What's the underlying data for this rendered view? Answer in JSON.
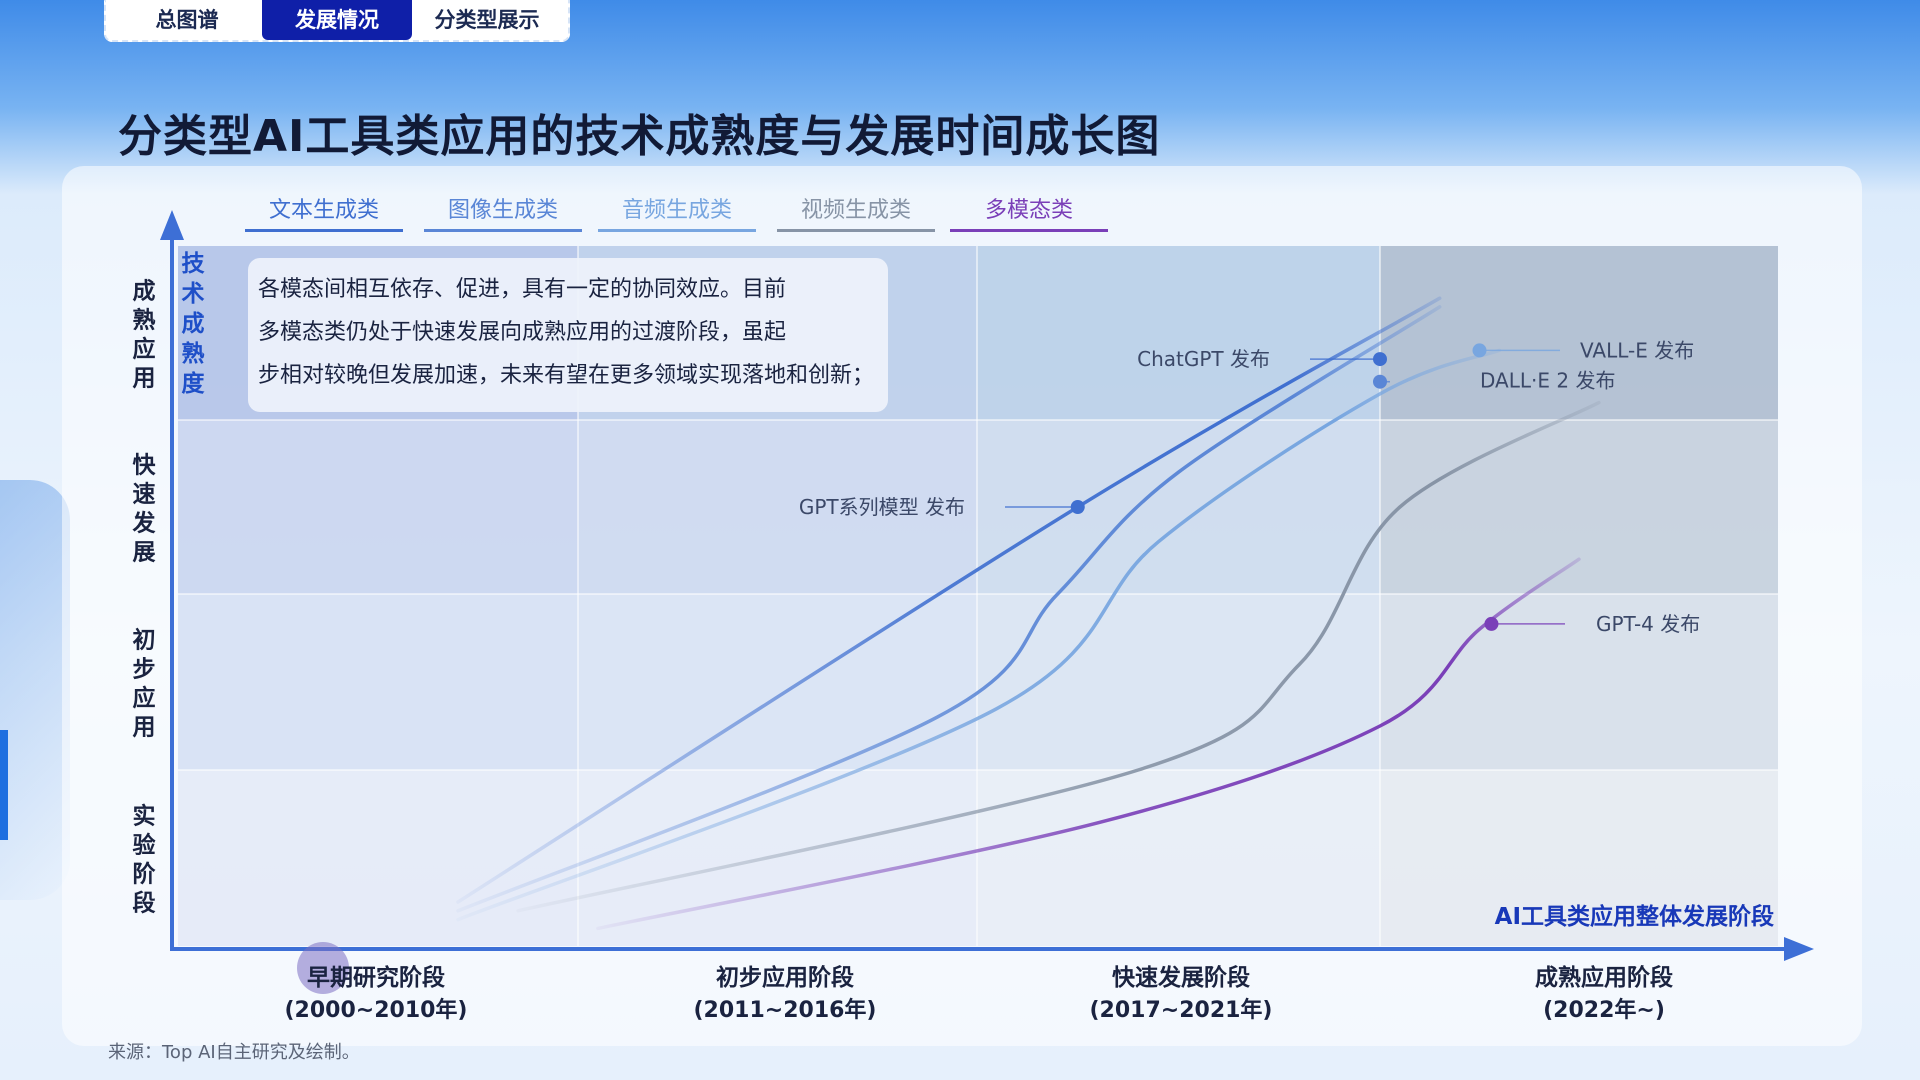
{
  "tabs": [
    {
      "label": "总图谱",
      "active": false
    },
    {
      "label": "发展情况",
      "active": true
    },
    {
      "label": "分类型展示",
      "active": false
    }
  ],
  "title": "分类型AI工具类应用的技术成熟度与发展时间成长图",
  "source": "来源：Top AI自主研究及绘制。",
  "callout": "各模态间相互依存、促进，具有一定的协同效应。目前多模态类仍处于快速发展向成熟应用的过渡阶段，虽起步相对较晚但发展加速，未来有望在更多领域实现落地和创新；",
  "chart_data": {
    "type": "line",
    "ylabel": "技术成熟度",
    "xlabel": "AI工具类应用整体发展阶段",
    "y_levels": [
      "实验阶段",
      "初步应用",
      "快速发展",
      "成熟应用"
    ],
    "x_stages": [
      {
        "name": "早期研究阶段",
        "period": "(2000~2010年)"
      },
      {
        "name": "初步应用阶段",
        "period": "(2011~2016年)"
      },
      {
        "name": "快速发展阶段",
        "period": "(2017~2021年)"
      },
      {
        "name": "成熟应用阶段",
        "period": "(2022年~)"
      }
    ],
    "legend_placement": "top",
    "series": [
      {
        "name": "文本生成类",
        "color": "#3f6fd0",
        "points": [
          [
            0.7,
            0.25
          ],
          [
            2.25,
            2.5
          ],
          [
            3.15,
            3.7
          ]
        ]
      },
      {
        "name": "图像生成类",
        "color": "#5a86d6",
        "points": [
          [
            0.7,
            0.2
          ],
          [
            1.9,
            1.3
          ],
          [
            2.2,
            2.0
          ],
          [
            2.5,
            2.7
          ],
          [
            3.15,
            3.65
          ]
        ]
      },
      {
        "name": "音频生成类",
        "color": "#78a6e0",
        "points": [
          [
            0.7,
            0.15
          ],
          [
            2.05,
            1.35
          ],
          [
            2.45,
            2.3
          ],
          [
            3.0,
            3.15
          ],
          [
            3.3,
            3.4
          ]
        ]
      },
      {
        "name": "视频生成类",
        "color": "#8794a6",
        "points": [
          [
            0.85,
            0.2
          ],
          [
            2.4,
            1.0
          ],
          [
            2.8,
            1.6
          ],
          [
            3.05,
            2.5
          ],
          [
            3.55,
            3.1
          ]
        ]
      },
      {
        "name": "多模态类",
        "color": "#7a3fb8",
        "points": [
          [
            1.05,
            0.1
          ],
          [
            2.3,
            0.7
          ],
          [
            3.0,
            1.25
          ],
          [
            3.25,
            1.8
          ],
          [
            3.5,
            2.2
          ]
        ]
      }
    ],
    "events": [
      {
        "label": "GPT系列模型 发布",
        "x": 2.25,
        "y": 2.5,
        "color": "#3f6fd0"
      },
      {
        "label": "ChatGPT 发布",
        "x": 3.0,
        "y": 3.35,
        "color": "#3f6fd0"
      },
      {
        "label": "DALL·E 2 发布",
        "x": 3.0,
        "y": 3.22,
        "color": "#5a86d6"
      },
      {
        "label": "VALL-E 发布",
        "x": 3.25,
        "y": 3.4,
        "color": "#78a6e0"
      },
      {
        "label": "GPT-4 发布",
        "x": 3.28,
        "y": 1.83,
        "color": "#7a3fb8"
      }
    ]
  }
}
